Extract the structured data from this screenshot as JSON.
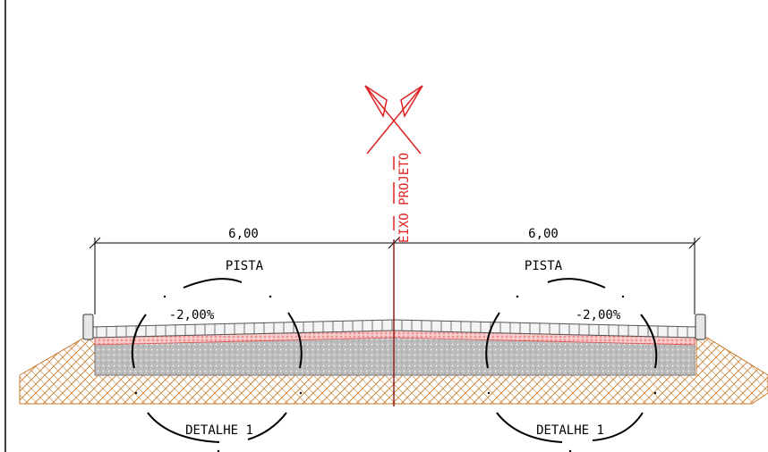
{
  "section": {
    "axis_label": "EIXO PROJETO",
    "left": {
      "width_label": "6,00",
      "lane_label": "PISTA",
      "slope_label": "-2,00%",
      "detail_label": "DETALHE 1"
    },
    "right": {
      "width_label": "6,00",
      "lane_label": "PISTA",
      "slope_label": "-2,00%",
      "detail_label": "DETALHE 1"
    }
  },
  "colors": {
    "axis": "#e02020",
    "earth": "#c8782a",
    "base": "#a8a8a8",
    "pavement_red": "#f2a0a0"
  }
}
